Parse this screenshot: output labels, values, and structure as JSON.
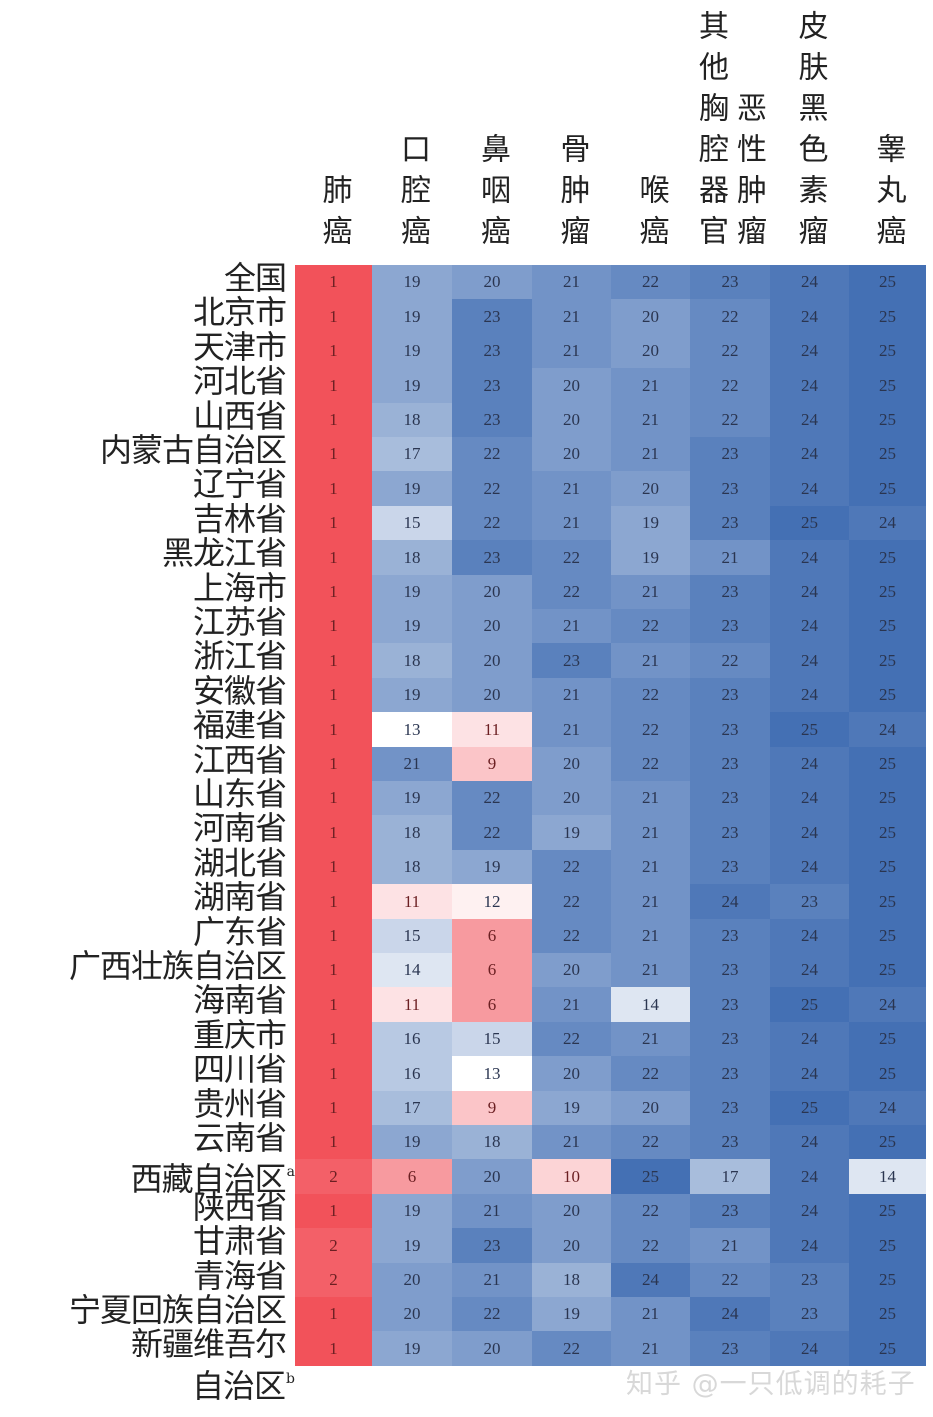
{
  "chart_data": {
    "type": "heatmap",
    "title": "",
    "columns": [
      "肺癌",
      "口腔癌",
      "鼻咽癌",
      "骨肿瘤",
      "喉癌",
      "其他胸腔器官恶性肿瘤",
      "皮肤黑色素瘤",
      "睾丸癌"
    ],
    "column_header_lines": [
      [
        "肺癌"
      ],
      [
        "口腔癌"
      ],
      [
        "鼻咽癌"
      ],
      [
        "骨肿瘤"
      ],
      [
        "喉癌"
      ],
      [
        "其他胸腔器官",
        "恶性肿瘤"
      ],
      [
        "皮肤黑色素瘤"
      ],
      [
        "睾丸癌"
      ]
    ],
    "rows": [
      {
        "label": "全国",
        "sup": "",
        "values": [
          1,
          19,
          20,
          21,
          22,
          23,
          24,
          25
        ]
      },
      {
        "label": "北京市",
        "sup": "",
        "values": [
          1,
          19,
          23,
          21,
          20,
          22,
          24,
          25
        ]
      },
      {
        "label": "天津市",
        "sup": "",
        "values": [
          1,
          19,
          23,
          21,
          20,
          22,
          24,
          25
        ]
      },
      {
        "label": "河北省",
        "sup": "",
        "values": [
          1,
          19,
          23,
          20,
          21,
          22,
          24,
          25
        ]
      },
      {
        "label": "山西省",
        "sup": "",
        "values": [
          1,
          18,
          23,
          20,
          21,
          22,
          24,
          25
        ]
      },
      {
        "label": "内蒙古自治区",
        "sup": "",
        "values": [
          1,
          17,
          22,
          20,
          21,
          23,
          24,
          25
        ]
      },
      {
        "label": "辽宁省",
        "sup": "",
        "values": [
          1,
          19,
          22,
          21,
          20,
          23,
          24,
          25
        ]
      },
      {
        "label": "吉林省",
        "sup": "",
        "values": [
          1,
          15,
          22,
          21,
          19,
          23,
          25,
          24
        ]
      },
      {
        "label": "黑龙江省",
        "sup": "",
        "values": [
          1,
          18,
          23,
          22,
          19,
          21,
          24,
          25
        ]
      },
      {
        "label": "上海市",
        "sup": "",
        "values": [
          1,
          19,
          20,
          22,
          21,
          23,
          24,
          25
        ]
      },
      {
        "label": "江苏省",
        "sup": "",
        "values": [
          1,
          19,
          20,
          21,
          22,
          23,
          24,
          25
        ]
      },
      {
        "label": "浙江省",
        "sup": "",
        "values": [
          1,
          18,
          20,
          23,
          21,
          22,
          24,
          25
        ]
      },
      {
        "label": "安徽省",
        "sup": "",
        "values": [
          1,
          19,
          20,
          21,
          22,
          23,
          24,
          25
        ]
      },
      {
        "label": "福建省",
        "sup": "",
        "values": [
          1,
          13,
          11,
          21,
          22,
          23,
          25,
          24
        ]
      },
      {
        "label": "江西省",
        "sup": "",
        "values": [
          1,
          21,
          9,
          20,
          22,
          23,
          24,
          25
        ]
      },
      {
        "label": "山东省",
        "sup": "",
        "values": [
          1,
          19,
          22,
          20,
          21,
          23,
          24,
          25
        ]
      },
      {
        "label": "河南省",
        "sup": "",
        "values": [
          1,
          18,
          22,
          19,
          21,
          23,
          24,
          25
        ]
      },
      {
        "label": "湖北省",
        "sup": "",
        "values": [
          1,
          18,
          19,
          22,
          21,
          23,
          24,
          25
        ]
      },
      {
        "label": "湖南省",
        "sup": "",
        "values": [
          1,
          11,
          12,
          22,
          21,
          24,
          23,
          25
        ]
      },
      {
        "label": "广东省",
        "sup": "",
        "values": [
          1,
          15,
          6,
          22,
          21,
          23,
          24,
          25
        ]
      },
      {
        "label": "广西壮族自治区",
        "sup": "",
        "values": [
          1,
          14,
          6,
          20,
          21,
          23,
          24,
          25
        ]
      },
      {
        "label": "海南省",
        "sup": "",
        "values": [
          1,
          11,
          6,
          21,
          14,
          23,
          25,
          24
        ]
      },
      {
        "label": "重庆市",
        "sup": "",
        "values": [
          1,
          16,
          15,
          22,
          21,
          23,
          24,
          25
        ]
      },
      {
        "label": "四川省",
        "sup": "",
        "values": [
          1,
          16,
          13,
          20,
          22,
          23,
          24,
          25
        ]
      },
      {
        "label": "贵州省",
        "sup": "",
        "values": [
          1,
          17,
          9,
          19,
          20,
          23,
          25,
          24
        ]
      },
      {
        "label": "云南省",
        "sup": "",
        "values": [
          1,
          19,
          18,
          21,
          22,
          23,
          24,
          25
        ]
      },
      {
        "label": "西藏自治区",
        "sup": "a",
        "values": [
          2,
          6,
          20,
          10,
          25,
          17,
          24,
          14
        ]
      },
      {
        "label": "陕西省",
        "sup": "",
        "values": [
          1,
          19,
          21,
          20,
          22,
          23,
          24,
          25
        ]
      },
      {
        "label": "甘肃省",
        "sup": "",
        "values": [
          2,
          19,
          23,
          20,
          22,
          21,
          24,
          25
        ]
      },
      {
        "label": "青海省",
        "sup": "",
        "values": [
          2,
          20,
          21,
          18,
          24,
          22,
          23,
          25
        ]
      },
      {
        "label": "宁夏回族自治区",
        "sup": "",
        "values": [
          1,
          20,
          22,
          19,
          21,
          24,
          23,
          25
        ]
      },
      {
        "label": "新疆维吾尔",
        "label2": "自治区",
        "sup": "b",
        "values": [
          1,
          19,
          20,
          22,
          21,
          23,
          24,
          25
        ]
      }
    ],
    "color_scale": {
      "low": "#f2525a",
      "mid": "#ffffff",
      "high": "#4470b4",
      "range": [
        1,
        25
      ],
      "midpoint": 13
    },
    "legend": "none"
  },
  "watermark": "知乎 @一只低调的耗子"
}
